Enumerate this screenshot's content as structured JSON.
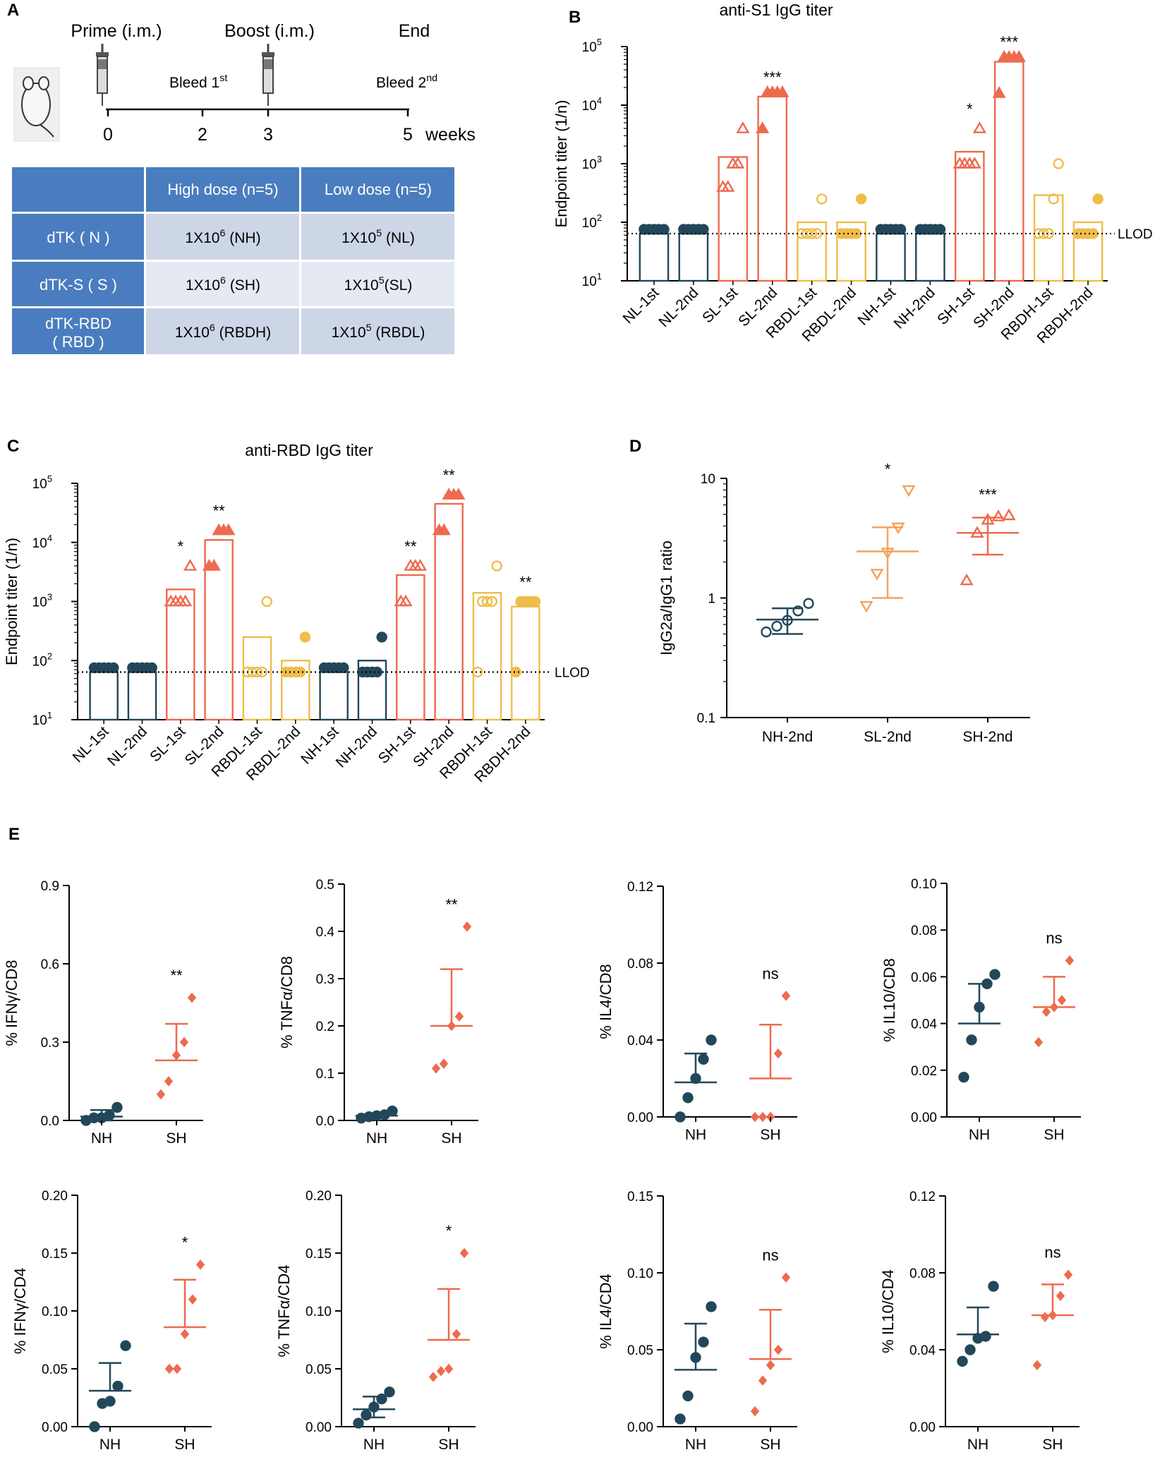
{
  "colors": {
    "dark": "#23475a",
    "orange": "#ee6a4f",
    "yellow": "#efbd4a",
    "header": "#4a7dbf",
    "row1": "#cdd6e7",
    "row2": "#e5e9f2"
  },
  "panelA": {
    "label": "A",
    "timeline": {
      "events": [
        "Prime (i.m.)",
        "Boost (i.m.)",
        "End"
      ],
      "bleeds": [
        {
          "text": "Bleed 1",
          "sup": "st"
        },
        {
          "text": "Bleed 2",
          "sup": "nd"
        }
      ],
      "ticks": [
        "0",
        "2",
        "3",
        "5"
      ],
      "unit": "weeks"
    },
    "table": {
      "headers": [
        "",
        "High dose (n=5)",
        "Low dose (n=5)"
      ],
      "rows": [
        {
          "group": [
            "dTK ( N )"
          ],
          "high": {
            "base": "1X10",
            "exp": "6",
            "tail": " (NH)"
          },
          "low": {
            "base": "1X10",
            "exp": "5",
            "tail": " (NL)"
          }
        },
        {
          "group": [
            "dTK-S ( S )"
          ],
          "high": {
            "base": "1X10",
            "exp": "6",
            "tail": " (SH)"
          },
          "low": {
            "base": "1X10",
            "exp": "5",
            "tail": "(SL)"
          }
        },
        {
          "group": [
            "dTK-RBD",
            "( RBD )"
          ],
          "high": {
            "base": "1X10",
            "exp": "6",
            "tail": " (RBDH)"
          },
          "low": {
            "base": "1X10",
            "exp": "5",
            "tail": " (RBDL)"
          }
        }
      ]
    }
  },
  "chart_data": [
    {
      "panel": "B",
      "type": "bar",
      "title": "anti-S1 IgG titer",
      "ylabel": "Endpoint titer (1/n)",
      "yscale": "log",
      "ylim": [
        10,
        100000
      ],
      "yticks": [
        "10^1",
        "10^2",
        "10^3",
        "10^4",
        "10^5"
      ],
      "llod": {
        "value": 64,
        "label": "LLOD"
      },
      "categories": [
        "NL-1st",
        "NL-2nd",
        "SL-1st",
        "SL-2nd",
        "RBDL-1st",
        "RBDL-2nd",
        "NH-1st",
        "NH-2nd",
        "SH-1st",
        "SH-2nd",
        "RBDH-1st",
        "RBDH-2nd"
      ],
      "colors": [
        "dark",
        "dark",
        "orange",
        "orange",
        "yellow",
        "yellow",
        "dark",
        "dark",
        "orange",
        "orange",
        "yellow",
        "yellow"
      ],
      "markers": [
        "circle",
        "circle",
        "triangle",
        "triangle",
        "circle",
        "circle",
        "circle",
        "circle",
        "triangle",
        "triangle",
        "circle",
        "circle"
      ],
      "filled": [
        true,
        true,
        false,
        true,
        false,
        true,
        true,
        true,
        false,
        true,
        false,
        true
      ],
      "values": [
        64,
        64,
        1300,
        14000,
        100,
        100,
        64,
        64,
        1600,
        55000,
        290,
        100
      ],
      "points": [
        [
          64,
          64,
          64,
          64,
          64
        ],
        [
          64,
          64,
          64,
          64,
          64
        ],
        [
          400,
          400,
          1000,
          1000,
          4000
        ],
        [
          4000,
          14000,
          14000,
          14000,
          14000
        ],
        [
          64,
          64,
          64,
          64,
          250
        ],
        [
          64,
          64,
          64,
          64,
          250
        ],
        [
          64,
          64,
          64,
          64,
          64
        ],
        [
          64,
          64,
          64,
          64,
          64
        ],
        [
          1000,
          1000,
          1000,
          1000,
          4000
        ],
        [
          16000,
          56000,
          56000,
          56000,
          56000
        ],
        [
          64,
          64,
          64,
          250,
          1000
        ],
        [
          64,
          64,
          64,
          64,
          250
        ]
      ],
      "significance": [
        "",
        "",
        "",
        "***",
        "",
        "",
        "",
        "",
        "*",
        "***",
        "",
        ""
      ]
    },
    {
      "panel": "C",
      "type": "bar",
      "title": "anti-RBD IgG titer",
      "ylabel": "Endpoint titer (1/n)",
      "yscale": "log",
      "ylim": [
        10,
        100000
      ],
      "yticks": [
        "10^1",
        "10^2",
        "10^3",
        "10^4",
        "10^5"
      ],
      "llod": {
        "value": 64,
        "label": "LLOD"
      },
      "categories": [
        "NL-1st",
        "NL-2nd",
        "SL-1st",
        "SL-2nd",
        "RBDL-1st",
        "RBDL-2nd",
        "NH-1st",
        "NH-2nd",
        "SH-1st",
        "SH-2nd",
        "RBDH-1st",
        "RBDH-2nd"
      ],
      "colors": [
        "dark",
        "dark",
        "orange",
        "orange",
        "yellow",
        "yellow",
        "dark",
        "dark",
        "orange",
        "orange",
        "yellow",
        "yellow"
      ],
      "markers": [
        "circle",
        "circle",
        "triangle",
        "triangle",
        "circle",
        "circle",
        "circle",
        "circle",
        "triangle",
        "triangle",
        "circle",
        "circle"
      ],
      "filled": [
        true,
        true,
        false,
        true,
        false,
        true,
        true,
        true,
        false,
        true,
        false,
        true
      ],
      "values": [
        64,
        64,
        1600,
        11000,
        250,
        100,
        64,
        100,
        2800,
        45000,
        1400,
        820
      ],
      "points": [
        [
          64,
          64,
          64,
          64,
          64
        ],
        [
          64,
          64,
          64,
          64,
          64
        ],
        [
          1000,
          1000,
          1000,
          1000,
          4000
        ],
        [
          4000,
          4000,
          16000,
          16000,
          16000
        ],
        [
          64,
          64,
          64,
          64,
          1000
        ],
        [
          64,
          64,
          64,
          64,
          250
        ],
        [
          64,
          64,
          64,
          64,
          64
        ],
        [
          64,
          64,
          64,
          64,
          250
        ],
        [
          1000,
          1000,
          4000,
          4000,
          4000
        ],
        [
          16000,
          16000,
          64000,
          64000,
          64000
        ],
        [
          64,
          1000,
          1000,
          1000,
          4000
        ],
        [
          64,
          1000,
          1000,
          1000,
          1000
        ]
      ],
      "significance": [
        "",
        "",
        "*",
        "**",
        "",
        "",
        "",
        "",
        "**",
        "**",
        "",
        "**"
      ]
    },
    {
      "panel": "D",
      "type": "scatter",
      "ylabel": "IgG2a/IgG1 ratio",
      "yscale": "log",
      "ylim": [
        0.1,
        10
      ],
      "yticks": [
        "0.1",
        "1",
        "10"
      ],
      "groups": [
        {
          "name": "NH-2nd",
          "color": "dark",
          "marker": "circle",
          "points": [
            0.52,
            0.58,
            0.65,
            0.78,
            0.9
          ],
          "mean": 0.66,
          "sd_low": 0.5,
          "sd_high": 0.82,
          "significance": ""
        },
        {
          "name": "SL-2nd",
          "color": "light",
          "marker": "triangle-down",
          "points": [
            0.86,
            1.6,
            2.4,
            3.9,
            8.0
          ],
          "mean": 2.45,
          "sd_low": 1.0,
          "sd_high": 3.9,
          "significance": "*"
        },
        {
          "name": "SH-2nd",
          "color": "orange",
          "marker": "triangle",
          "points": [
            1.4,
            3.5,
            4.5,
            4.8,
            4.9
          ],
          "mean": 3.5,
          "sd_low": 2.3,
          "sd_high": 4.7,
          "significance": "***"
        }
      ]
    },
    {
      "panel": "E1",
      "type": "scatter",
      "ylabel": "% IFNγ/CD8",
      "ylim": [
        0,
        0.9
      ],
      "yticks": [
        "0.0",
        "0.3",
        "0.6",
        "0.9"
      ],
      "groups": [
        {
          "name": "NH",
          "color": "dark",
          "marker": "circle",
          "points": [
            0.0,
            0.01,
            0.01,
            0.02,
            0.05
          ],
          "mean": 0.015,
          "sem_low": 0.0,
          "sem_high": 0.04,
          "significance": ""
        },
        {
          "name": "SH",
          "color": "orange",
          "marker": "diamond",
          "points": [
            0.1,
            0.15,
            0.25,
            0.3,
            0.47
          ],
          "mean": 0.23,
          "sem_low": 0.23,
          "sem_high": 0.37,
          "significance": "**"
        }
      ]
    },
    {
      "panel": "E2",
      "type": "scatter",
      "ylabel": "% TNFα/CD8",
      "ylim": [
        0,
        0.5
      ],
      "yticks": [
        "0.0",
        "0.1",
        "0.2",
        "0.3",
        "0.4",
        "0.5"
      ],
      "groups": [
        {
          "name": "NH",
          "color": "dark",
          "marker": "circle",
          "points": [
            0.005,
            0.008,
            0.01,
            0.012,
            0.02
          ],
          "mean": 0.01,
          "sem_low": 0.005,
          "sem_high": 0.015,
          "significance": ""
        },
        {
          "name": "SH",
          "color": "orange",
          "marker": "diamond",
          "points": [
            0.11,
            0.12,
            0.2,
            0.22,
            0.41
          ],
          "mean": 0.2,
          "sem_low": 0.2,
          "sem_high": 0.32,
          "significance": "**"
        }
      ]
    },
    {
      "panel": "E3",
      "type": "scatter",
      "ylabel": "% IL4/CD8",
      "ylim": [
        0,
        0.12
      ],
      "yticks": [
        "0.00",
        "0.04",
        "0.08",
        "0.12"
      ],
      "groups": [
        {
          "name": "NH",
          "color": "dark",
          "marker": "circle",
          "points": [
            0.0,
            0.01,
            0.02,
            0.03,
            0.04
          ],
          "mean": 0.018,
          "sem_low": 0.018,
          "sem_high": 0.033,
          "significance": ""
        },
        {
          "name": "SH",
          "color": "orange",
          "marker": "diamond",
          "points": [
            0.0,
            0.0,
            0.0,
            0.033,
            0.063
          ],
          "mean": 0.02,
          "sem_low": 0.02,
          "sem_high": 0.048,
          "significance": "ns"
        }
      ]
    },
    {
      "panel": "E4",
      "type": "scatter",
      "ylabel": "% IL10/CD8",
      "ylim": [
        0,
        0.1
      ],
      "yticks": [
        "0.00",
        "0.02",
        "0.04",
        "0.06",
        "0.08",
        "0.10"
      ],
      "groups": [
        {
          "name": "NH",
          "color": "dark",
          "marker": "circle",
          "points": [
            0.017,
            0.033,
            0.047,
            0.057,
            0.061
          ],
          "mean": 0.04,
          "sem_low": 0.04,
          "sem_high": 0.057,
          "significance": ""
        },
        {
          "name": "SH",
          "color": "orange",
          "marker": "diamond",
          "points": [
            0.032,
            0.045,
            0.047,
            0.05,
            0.067
          ],
          "mean": 0.047,
          "sem_low": 0.047,
          "sem_high": 0.06,
          "significance": "ns"
        }
      ]
    },
    {
      "panel": "E5",
      "type": "scatter",
      "ylabel": "% IFNγ/CD4",
      "ylim": [
        0,
        0.2
      ],
      "yticks": [
        "0.00",
        "0.05",
        "0.10",
        "0.15",
        "0.20"
      ],
      "groups": [
        {
          "name": "NH",
          "color": "dark",
          "marker": "circle",
          "points": [
            0.0,
            0.02,
            0.022,
            0.035,
            0.07
          ],
          "mean": 0.031,
          "sem_low": 0.031,
          "sem_high": 0.055,
          "significance": ""
        },
        {
          "name": "SH",
          "color": "orange",
          "marker": "diamond",
          "points": [
            0.05,
            0.05,
            0.08,
            0.11,
            0.14
          ],
          "mean": 0.086,
          "sem_low": 0.086,
          "sem_high": 0.127,
          "significance": "*"
        }
      ]
    },
    {
      "panel": "E6",
      "type": "scatter",
      "ylabel": "% TNFα/CD4",
      "ylim": [
        0,
        0.2
      ],
      "yticks": [
        "0.00",
        "0.05",
        "0.10",
        "0.15",
        "0.20"
      ],
      "groups": [
        {
          "name": "NH",
          "color": "dark",
          "marker": "circle",
          "points": [
            0.003,
            0.01,
            0.017,
            0.024,
            0.03
          ],
          "mean": 0.015,
          "sem_low": 0.008,
          "sem_high": 0.026,
          "significance": ""
        },
        {
          "name": "SH",
          "color": "orange",
          "marker": "diamond",
          "points": [
            0.043,
            0.048,
            0.05,
            0.08,
            0.15
          ],
          "mean": 0.075,
          "sem_low": 0.075,
          "sem_high": 0.119,
          "significance": "*"
        }
      ]
    },
    {
      "panel": "E7",
      "type": "scatter",
      "ylabel": "% IL4/CD4",
      "ylim": [
        0,
        0.15
      ],
      "yticks": [
        "0.00",
        "0.05",
        "0.10",
        "0.15"
      ],
      "groups": [
        {
          "name": "NH",
          "color": "dark",
          "marker": "circle",
          "points": [
            0.005,
            0.02,
            0.045,
            0.055,
            0.078
          ],
          "mean": 0.037,
          "sem_low": 0.037,
          "sem_high": 0.067,
          "significance": ""
        },
        {
          "name": "SH",
          "color": "orange",
          "marker": "diamond",
          "points": [
            0.01,
            0.03,
            0.04,
            0.05,
            0.097
          ],
          "mean": 0.044,
          "sem_low": 0.044,
          "sem_high": 0.076,
          "significance": "ns"
        }
      ]
    },
    {
      "panel": "E8",
      "type": "scatter",
      "ylabel": "% IL10/CD4",
      "ylim": [
        0,
        0.12
      ],
      "yticks": [
        "0.00",
        "0.04",
        "0.08",
        "0.12"
      ],
      "groups": [
        {
          "name": "NH",
          "color": "dark",
          "marker": "circle",
          "points": [
            0.034,
            0.04,
            0.046,
            0.047,
            0.073
          ],
          "mean": 0.048,
          "sem_low": 0.048,
          "sem_high": 0.062,
          "significance": ""
        },
        {
          "name": "SH",
          "color": "orange",
          "marker": "diamond",
          "points": [
            0.032,
            0.057,
            0.058,
            0.068,
            0.079
          ],
          "mean": 0.058,
          "sem_low": 0.058,
          "sem_high": 0.074,
          "significance": "ns"
        }
      ]
    }
  ],
  "panelLabels": {
    "B": "B",
    "C": "C",
    "D": "D",
    "E": "E"
  }
}
